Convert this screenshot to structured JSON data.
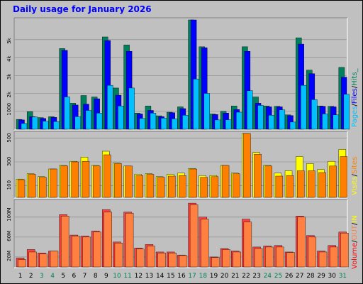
{
  "title": "Daily usage for January 2026",
  "colors": {
    "hits": "#00805c",
    "files": "#0000ff",
    "pages": "#00c0ff",
    "visits": "#ffff00",
    "sites": "#ff8000",
    "kbin": "#ff0000",
    "kbout": "#ff8040",
    "volume": "#ff4040",
    "weekend_label": "#00805c",
    "label_sep": "#000000"
  },
  "chart_data": [
    {
      "type": "bar",
      "name": "hits-files-pages",
      "categories": [
        "1",
        "2",
        "3",
        "4",
        "5",
        "6",
        "7",
        "8",
        "9",
        "10",
        "11",
        "12",
        "13",
        "14",
        "15",
        "16",
        "17",
        "18",
        "19",
        "20",
        "21",
        "22",
        "23",
        "24",
        "25",
        "26",
        "27",
        "28",
        "29",
        "30",
        "31"
      ],
      "weekend": [
        3,
        4,
        10,
        11,
        17,
        18,
        24,
        25,
        31
      ],
      "yticks": [
        "1000",
        "2k",
        "3k",
        "4k",
        "5k"
      ],
      "ytick_values": [
        1000,
        2000,
        3000,
        4000,
        5000
      ],
      "ylim": [
        0,
        6100
      ],
      "right_label": {
        "pages": "Pages",
        "sep1": "/",
        "files": "Files",
        "sep2": "/",
        "hits": "Hits_"
      },
      "series": [
        {
          "name": "Hits",
          "values": [
            550,
            980,
            650,
            700,
            4500,
            1450,
            1880,
            1800,
            5150,
            2300,
            4700,
            900,
            1300,
            750,
            950,
            1250,
            6100,
            4600,
            850,
            1000,
            1300,
            4600,
            1800,
            1300,
            1280,
            800,
            5100,
            3300,
            1300,
            1280,
            3450
          ]
        },
        {
          "name": "Files",
          "values": [
            520,
            700,
            600,
            660,
            4400,
            1350,
            1400,
            1700,
            4950,
            1900,
            4350,
            850,
            1050,
            700,
            920,
            1150,
            6100,
            4550,
            820,
            900,
            1100,
            4350,
            1450,
            1250,
            1250,
            760,
            4750,
            3100,
            1280,
            1250,
            2900
          ]
        },
        {
          "name": "Pages",
          "values": [
            320,
            680,
            450,
            430,
            1800,
            700,
            1050,
            900,
            2450,
            1300,
            2300,
            600,
            900,
            620,
            580,
            780,
            2800,
            2000,
            520,
            530,
            950,
            2150,
            1330,
            780,
            1080,
            400,
            2450,
            1650,
            850,
            800,
            1950
          ]
        }
      ]
    },
    {
      "type": "bar",
      "name": "visits-sites",
      "categories": [
        "1",
        "2",
        "3",
        "4",
        "5",
        "6",
        "7",
        "8",
        "9",
        "10",
        "11",
        "12",
        "13",
        "14",
        "15",
        "16",
        "17",
        "18",
        "19",
        "20",
        "21",
        "22",
        "23",
        "24",
        "25",
        "26",
        "27",
        "28",
        "29",
        "30",
        "31"
      ],
      "yticks": [
        "100",
        "300",
        "500"
      ],
      "ytick_values": [
        100,
        300,
        500
      ],
      "ylim": [
        0,
        540
      ],
      "right_label": {
        "visits": "Visits",
        "sep": "/",
        "sites": "Sites"
      },
      "series": [
        {
          "name": "Visits",
          "values": [
            155,
            200,
            175,
            240,
            270,
            305,
            340,
            270,
            390,
            290,
            265,
            195,
            200,
            175,
            195,
            205,
            245,
            185,
            185,
            270,
            205,
            540,
            380,
            270,
            205,
            225,
            345,
            285,
            235,
            305,
            405
          ]
        },
        {
          "name": "Sites",
          "values": [
            150,
            195,
            170,
            240,
            265,
            300,
            305,
            265,
            360,
            285,
            265,
            185,
            195,
            170,
            180,
            185,
            240,
            170,
            175,
            270,
            200,
            540,
            365,
            265,
            180,
            185,
            225,
            225,
            210,
            265,
            345
          ]
        }
      ]
    },
    {
      "type": "bar",
      "name": "volume",
      "categories": [
        "1",
        "2",
        "3",
        "4",
        "5",
        "6",
        "7",
        "8",
        "9",
        "10",
        "11",
        "12",
        "13",
        "14",
        "15",
        "16",
        "17",
        "18",
        "19",
        "20",
        "21",
        "22",
        "23",
        "24",
        "25",
        "26",
        "27",
        "28",
        "29",
        "30",
        "31"
      ],
      "yticks": [
        "20M",
        "60M",
        "100M"
      ],
      "ytick_values": [
        20,
        60,
        100
      ],
      "ylim": [
        0,
        131
      ],
      "right_label": {
        "volume": "Volume",
        "sep1": "/",
        "kbout": "OUT",
        "sep2": "/",
        "kbin": "IN"
      },
      "series": [
        {
          "name": "Volume",
          "values": [
            18,
            35,
            28,
            32,
            105,
            64,
            62,
            72,
            115,
            50,
            110,
            38,
            45,
            30,
            30,
            24,
            128,
            100,
            20,
            37,
            32,
            96,
            40,
            42,
            43,
            30,
            102,
            63,
            32,
            43,
            70
          ]
        },
        {
          "name": "Out",
          "values": [
            15,
            30,
            26,
            32,
            102,
            62,
            60,
            70,
            110,
            48,
            108,
            36,
            42,
            28,
            28,
            23,
            125,
            96,
            19,
            35,
            30,
            90,
            37,
            40,
            40,
            29,
            100,
            60,
            30,
            40,
            68
          ]
        }
      ]
    }
  ]
}
